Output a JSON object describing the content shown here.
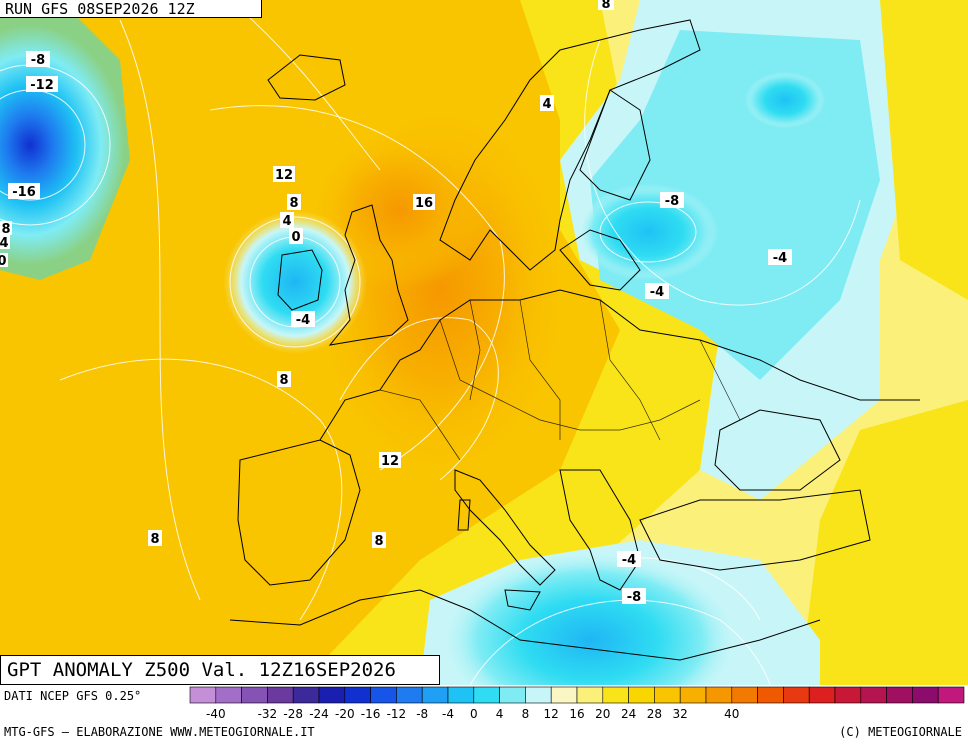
{
  "header": {
    "run_label": "RUN GFS 08SEP2026 12Z"
  },
  "map": {
    "title": "GPT ANOMALY Z500 Val. 12Z16SEP2026",
    "contour_labels": [
      {
        "text": "8"
      },
      {
        "text": "-8"
      },
      {
        "text": "-12"
      },
      {
        "text": "-16"
      },
      {
        "text": "8"
      },
      {
        "text": "4"
      },
      {
        "text": "0"
      },
      {
        "text": "12"
      },
      {
        "text": "8"
      },
      {
        "text": "4"
      },
      {
        "text": "0"
      },
      {
        "text": "16"
      },
      {
        "text": "-4"
      },
      {
        "text": "8"
      },
      {
        "text": "4"
      },
      {
        "text": "-8"
      },
      {
        "text": "-4"
      },
      {
        "text": "-4"
      },
      {
        "text": "12"
      },
      {
        "text": "8"
      },
      {
        "text": "8"
      },
      {
        "text": "-4"
      },
      {
        "text": "-8"
      }
    ]
  },
  "legend": {
    "source": "DATI NCEP GFS 0.25°",
    "ticks": [
      "-40",
      "-32",
      "-28",
      "-24",
      "-20",
      "-16",
      "-12",
      "-8",
      "-4",
      "0",
      "4",
      "8",
      "12",
      "16",
      "20",
      "24",
      "28",
      "32",
      "40"
    ],
    "colors": [
      "#c48fd6",
      "#a36ec8",
      "#8553b4",
      "#6a3a9f",
      "#3d2a9a",
      "#1a1fb0",
      "#1030d0",
      "#1755e8",
      "#1e7cf0",
      "#1fa0f4",
      "#1fc2f4",
      "#2fdcf2",
      "#7fecf4",
      "#c8f6f8",
      "#fbf7c4",
      "#fbf07a",
      "#f9e41a",
      "#f9d600",
      "#f9c400",
      "#f8b000",
      "#f59800",
      "#f27a00",
      "#ef5a00",
      "#e83a10",
      "#dc2020",
      "#c81838",
      "#b41450",
      "#a01060",
      "#8c0c6c",
      "#c0187c"
    ]
  },
  "footer": {
    "credit": "MTG-GFS – ELABORAZIONE WWW.METEOGIORNALE.IT",
    "copyright": "(C) METEOGIORNALE"
  }
}
